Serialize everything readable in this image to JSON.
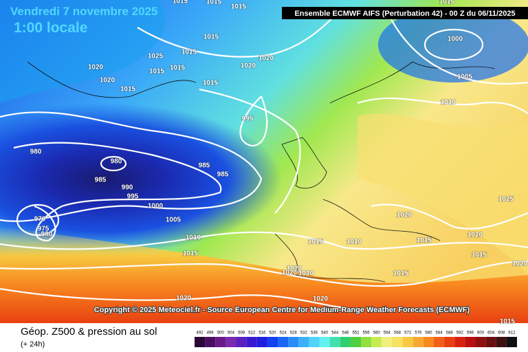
{
  "header": {
    "date": "Vendredi 7 novembre 2025",
    "time": "1:00 locale",
    "model": "Ensemble ECMWF AIFS  (Perturbation 42)  - 00 Z du 06/11/2025"
  },
  "map": {
    "copyright": "Copyright © 2025 Meteociel.fr - Source European Centre for Medium-Range Weather Forecasts (ECMWF)",
    "isobar_labels": [
      1015,
      1015,
      1015,
      1015,
      1015,
      1025,
      1020,
      1020,
      1015,
      1020,
      1015,
      1020,
      1015,
      1015,
      1000,
      1005,
      1010,
      995,
      980,
      980,
      985,
      985,
      985,
      990,
      995,
      1000,
      1005,
      970,
      975,
      980,
      1010,
      1015,
      1025,
      1020,
      1020,
      1015,
      1015,
      1010,
      1015,
      1020,
      1020,
      1020,
      1020,
      1015,
      1020,
      1020,
      1015,
      1015
    ]
  },
  "footer": {
    "title": "Géop. Z500 & pression au sol",
    "subtitle": "(+ 24h)"
  },
  "legend": {
    "values": [
      492,
      496,
      500,
      504,
      508,
      512,
      516,
      520,
      524,
      528,
      532,
      536,
      540,
      544,
      548,
      552,
      556,
      560,
      564,
      568,
      572,
      576,
      580,
      584,
      588,
      592,
      596,
      600,
      604,
      608,
      612
    ],
    "colors": [
      "#2a0838",
      "#4a1060",
      "#6a1a88",
      "#7a2ab0",
      "#5a20c0",
      "#3a1ad0",
      "#1f1fe0",
      "#1440f0",
      "#1a66f5",
      "#2a8cf8",
      "#3cb0fa",
      "#50d4fc",
      "#62f0f0",
      "#40e0b0",
      "#30d070",
      "#50d040",
      "#90e040",
      "#c8ec50",
      "#f0f080",
      "#f8e060",
      "#f8c840",
      "#f8a830",
      "#f88820",
      "#f06018",
      "#e84010",
      "#d82010",
      "#b81010",
      "#901010",
      "#681010",
      "#401010",
      "#101010"
    ]
  }
}
